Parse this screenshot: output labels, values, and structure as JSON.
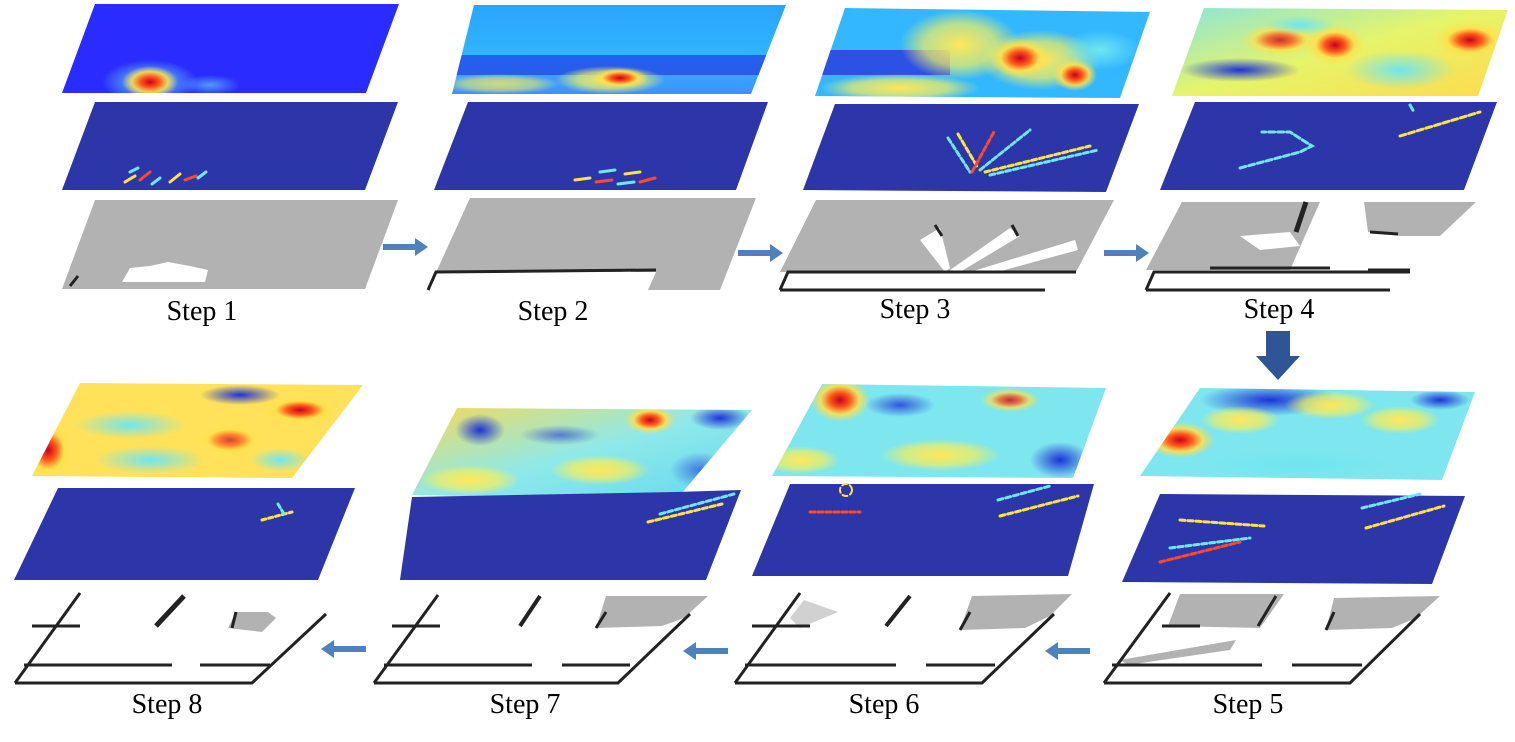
{
  "steps": [
    {
      "label": "Step 1"
    },
    {
      "label": "Step 2"
    },
    {
      "label": "Step 3"
    },
    {
      "label": "Step 4"
    },
    {
      "label": "Step 5"
    },
    {
      "label": "Step 6"
    },
    {
      "label": "Step 7"
    },
    {
      "label": "Step 8"
    }
  ],
  "colors": {
    "arrow": "#4f81bd",
    "arrow_down": "#2f5597",
    "sparse_bg": "#2d36a8",
    "map_gray": "#b2b2b2",
    "wall": "#222222"
  }
}
